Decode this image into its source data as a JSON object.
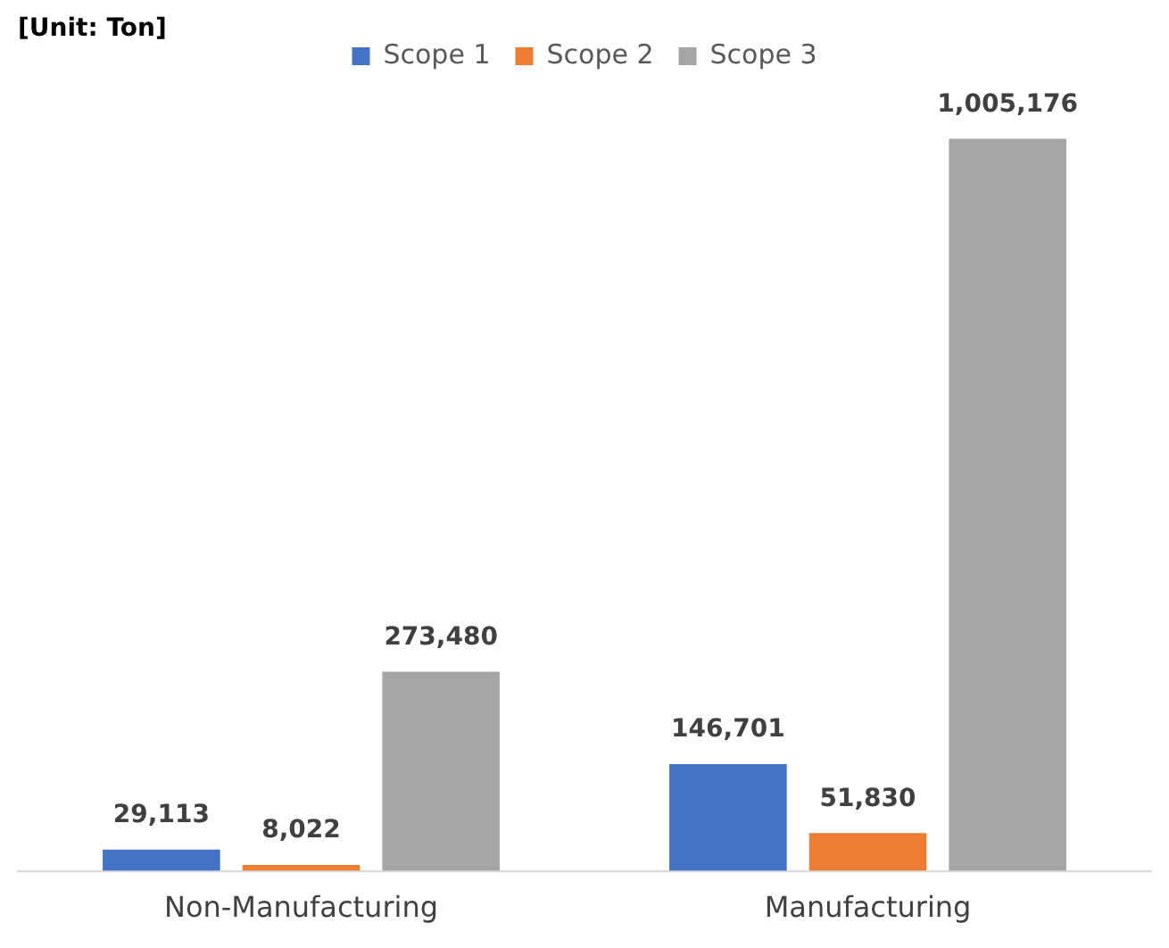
{
  "chart_data": {
    "type": "bar",
    "categories": [
      "Non-Manufacturing",
      "Manufacturing"
    ],
    "series": [
      {
        "name": "Scope 1",
        "color": "#4472c4",
        "values": [
          29113,
          146701
        ],
        "value_labels": [
          "29,113",
          "146,701"
        ]
      },
      {
        "name": "Scope 2",
        "color": "#ed7d31",
        "values": [
          8022,
          51830
        ],
        "value_labels": [
          "8,022",
          "51,830"
        ]
      },
      {
        "name": "Scope 3",
        "color": "#a5a5a5",
        "values": [
          273480,
          1005176
        ],
        "value_labels": [
          "273,480",
          "1,005,176"
        ]
      }
    ],
    "legend": "top",
    "grid": false,
    "tick_labels": "x",
    "annotations": [
      "[Unit: Ton]"
    ]
  }
}
